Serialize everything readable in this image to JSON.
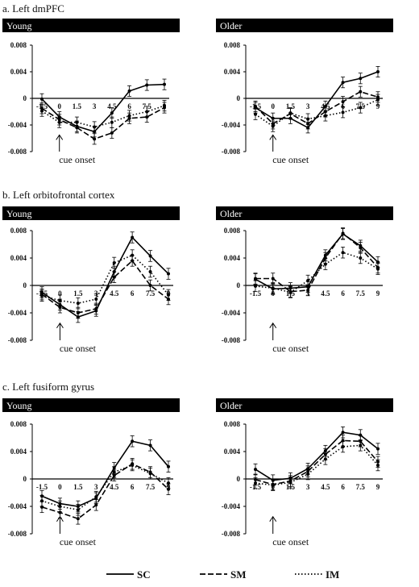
{
  "sections": [
    {
      "title": "a. Left dmPFC"
    },
    {
      "title": "b. Left orbitofrontal cortex"
    },
    {
      "title": "c. Left fusiform gyrus"
    }
  ],
  "legend": [
    "SC",
    "SM",
    "IM"
  ],
  "annotation": "cue onset",
  "chart_data": [
    {
      "type": "line",
      "region": "Left dmPFC",
      "group": "Young",
      "title": "Young",
      "x": [
        -1.5,
        0,
        1.5,
        3,
        4.5,
        6,
        7.5,
        9
      ],
      "x_tick_labels": [
        "-1.5",
        "0",
        "1.5",
        "3",
        "4.5",
        "6",
        "7.5",
        "9"
      ],
      "ylim": [
        -0.008,
        0.008
      ],
      "y_tick_labels": [
        "0.008",
        "0.004",
        "0",
        "-0.004",
        "-0.008"
      ],
      "series": [
        {
          "name": "SC",
          "values": [
            -0.0001,
            -0.0028,
            -0.0042,
            -0.005,
            -0.0022,
            0.0011,
            0.002,
            0.0021
          ]
        },
        {
          "name": "SM",
          "values": [
            -0.0015,
            -0.0032,
            -0.0044,
            -0.0061,
            -0.0052,
            -0.003,
            -0.0028,
            -0.0014
          ]
        },
        {
          "name": "IM",
          "values": [
            -0.0019,
            -0.0036,
            -0.0036,
            -0.0043,
            -0.0036,
            -0.0026,
            -0.002,
            -0.0011
          ]
        }
      ]
    },
    {
      "type": "line",
      "region": "Left dmPFC",
      "group": "Older",
      "title": "Older",
      "x": [
        -1.5,
        0,
        1.5,
        3,
        4.5,
        6,
        7.5,
        9
      ],
      "x_tick_labels": [
        "-1.5",
        "0",
        "1.5",
        "3",
        "4.5",
        "6",
        "7.5",
        "9"
      ],
      "ylim": [
        -0.008,
        0.008
      ],
      "y_tick_labels": [
        "0.008",
        "0.004",
        "0",
        "-0.004",
        "-0.008"
      ],
      "series": [
        {
          "name": "SC",
          "values": [
            -0.0014,
            -0.003,
            -0.003,
            -0.0044,
            -0.0012,
            0.0024,
            0.003,
            0.004
          ]
        },
        {
          "name": "SM",
          "values": [
            -0.0012,
            -0.0038,
            -0.0023,
            -0.0038,
            -0.002,
            -0.0005,
            0.001,
            0.0002
          ]
        },
        {
          "name": "IM",
          "values": [
            -0.0024,
            -0.0042,
            -0.0022,
            -0.0031,
            -0.0026,
            -0.0021,
            -0.0014,
            -0.0002
          ]
        }
      ]
    },
    {
      "type": "line",
      "region": "Left orbitofrontal cortex",
      "group": "Young",
      "title": "Young",
      "x": [
        -1.5,
        0,
        1.5,
        3,
        4.5,
        6,
        7.5,
        9
      ],
      "x_tick_labels": [
        "-1.5",
        "0",
        "1.5",
        "3",
        "4.5",
        "6",
        "7.5",
        "9"
      ],
      "ylim": [
        -0.008,
        0.008
      ],
      "y_tick_labels": [
        "0.008",
        "0.004",
        "0",
        "-0.004",
        "-0.008"
      ],
      "series": [
        {
          "name": "SC",
          "values": [
            -0.001,
            -0.0028,
            -0.0046,
            -0.0037,
            0.002,
            0.007,
            0.0043,
            0.0017
          ]
        },
        {
          "name": "SM",
          "values": [
            -0.0013,
            -0.0032,
            -0.004,
            -0.0034,
            0.0012,
            0.0036,
            0.0,
            -0.002
          ]
        },
        {
          "name": "IM",
          "values": [
            -0.0015,
            -0.0022,
            -0.0026,
            -0.002,
            0.0033,
            0.0044,
            0.002,
            -0.0014
          ]
        }
      ]
    },
    {
      "type": "line",
      "region": "Left orbitofrontal cortex",
      "group": "Older",
      "title": "Older",
      "x": [
        -1.5,
        0,
        1.5,
        3,
        4.5,
        6,
        7.5,
        9
      ],
      "x_tick_labels": [
        "-1.5",
        "0",
        "1.5",
        "3",
        "4.5",
        "6",
        "7.5",
        "9"
      ],
      "ylim": [
        -0.008,
        0.008
      ],
      "y_tick_labels": [
        "0.008",
        "0.004",
        "0",
        "-0.004",
        "-0.008"
      ],
      "series": [
        {
          "name": "SC",
          "values": [
            0.0009,
            -0.0005,
            -0.0004,
            -0.0002,
            0.0044,
            0.0075,
            0.0058,
            0.0034
          ]
        },
        {
          "name": "SM",
          "values": [
            0.001,
            0.001,
            -0.0009,
            -0.0007,
            0.004,
            0.0076,
            0.0055,
            0.0026
          ]
        },
        {
          "name": "IM",
          "values": [
            -0.0001,
            -0.0004,
            -0.001,
            0.0007,
            0.0031,
            0.0048,
            0.004,
            0.0024
          ]
        }
      ]
    },
    {
      "type": "line",
      "region": "Left fusiform gyrus",
      "group": "Young",
      "title": "Young",
      "x": [
        -1.5,
        0,
        1.5,
        3,
        4.5,
        6,
        7.5,
        9
      ],
      "x_tick_labels": [
        "-1.5",
        "0",
        "1.5",
        "3",
        "4.5",
        "6",
        "7.5",
        "9"
      ],
      "ylim": [
        -0.008,
        0.008
      ],
      "y_tick_labels": [
        "0.008",
        "0.004",
        "0",
        "-0.004",
        "-0.008"
      ],
      "series": [
        {
          "name": "SC",
          "values": [
            -0.0025,
            -0.0036,
            -0.004,
            -0.0028,
            0.0016,
            0.0055,
            0.0049,
            0.0018
          ]
        },
        {
          "name": "SM",
          "values": [
            -0.0041,
            -0.0049,
            -0.0058,
            -0.0038,
            0.0005,
            0.0022,
            0.001,
            -0.0015
          ]
        },
        {
          "name": "IM",
          "values": [
            -0.0032,
            -0.004,
            -0.0045,
            -0.0026,
            0.001,
            0.002,
            0.0008,
            -0.0006
          ]
        }
      ]
    },
    {
      "type": "line",
      "region": "Left fusiform gyrus",
      "group": "Older",
      "title": "Older",
      "x": [
        -1.5,
        0,
        1.5,
        3,
        4.5,
        6,
        7.5,
        9
      ],
      "x_tick_labels": [
        "-1.5",
        "0",
        "1.5",
        "3",
        "4.5",
        "6",
        "7.5",
        "9"
      ],
      "ylim": [
        -0.008,
        0.008
      ],
      "y_tick_labels": [
        "0.008",
        "0.004",
        "0",
        "-0.004",
        "-0.008"
      ],
      "series": [
        {
          "name": "SC",
          "values": [
            0.0014,
            -0.0002,
            0.0001,
            0.0015,
            0.0041,
            0.0068,
            0.0064,
            0.0044
          ]
        },
        {
          "name": "SM",
          "values": [
            -0.0001,
            -0.0008,
            -0.0003,
            0.0011,
            0.0036,
            0.0056,
            0.0055,
            0.0025
          ]
        },
        {
          "name": "IM",
          "values": [
            -0.0006,
            -0.0009,
            -0.0005,
            0.0007,
            0.0029,
            0.0047,
            0.0049,
            0.002
          ]
        }
      ]
    }
  ]
}
